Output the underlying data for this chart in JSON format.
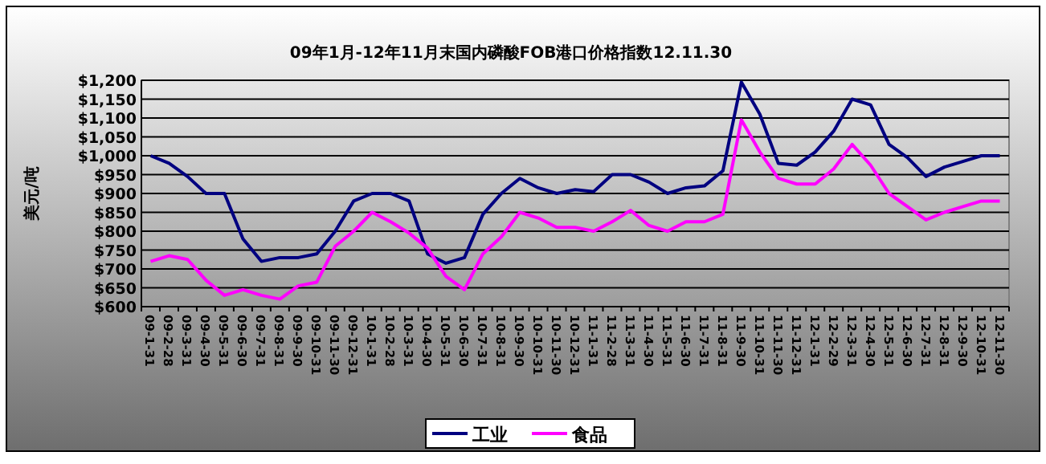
{
  "chart_data": {
    "type": "line",
    "title": "09年1月-12年11月末国内磷酸FOB港口价格指数12.11.30",
    "ylabel": "美元/吨",
    "categories": [
      "09-1-31",
      "09-2-28",
      "09-3-31",
      "09-4-30",
      "09-5-31",
      "09-6-30",
      "09-7-31",
      "09-8-31",
      "09-9-30",
      "09-10-31",
      "09-11-30",
      "09-12-31",
      "10-1-31",
      "10-2-28",
      "10-3-31",
      "10-4-30",
      "10-5-31",
      "10-6-30",
      "10-7-31",
      "10-8-31",
      "10-9-30",
      "10-10-31",
      "10-11-30",
      "10-12-31",
      "11-1-31",
      "11-2-28",
      "11-3-31",
      "11-4-30",
      "11-5-31",
      "11-6-30",
      "11-7-31",
      "11-8-31",
      "11-9-30",
      "11-10-31",
      "11-11-30",
      "11-12-31",
      "12-1-31",
      "12-2-29",
      "12-3-31",
      "12-4-30",
      "12-5-31",
      "12-6-30",
      "12-7-31",
      "12-8-31",
      "12-9-30",
      "12-10-31",
      "12-11-30"
    ],
    "series": [
      {
        "name": "工业",
        "color": "#000080",
        "values": [
          1000,
          980,
          945,
          900,
          900,
          780,
          720,
          730,
          730,
          740,
          800,
          880,
          900,
          900,
          880,
          740,
          715,
          730,
          845,
          900,
          940,
          915,
          900,
          910,
          905,
          950,
          950,
          930,
          900,
          915,
          920,
          960,
          1195,
          1110,
          980,
          975,
          1010,
          1065,
          1150,
          1135,
          1030,
          995,
          945,
          970,
          985,
          1000,
          1000
        ]
      },
      {
        "name": "食品",
        "color": "#ff00ff",
        "values": [
          720,
          735,
          725,
          670,
          630,
          645,
          630,
          620,
          655,
          665,
          760,
          800,
          850,
          825,
          795,
          755,
          680,
          645,
          740,
          785,
          850,
          835,
          810,
          810,
          800,
          825,
          855,
          815,
          800,
          825,
          825,
          845,
          1095,
          1010,
          940,
          925,
          925,
          965,
          1030,
          975,
          900,
          865,
          830,
          850,
          865,
          880,
          880
        ]
      }
    ],
    "ylim": [
      600,
      1200
    ],
    "yticks": [
      {
        "value": 600,
        "label": "$600"
      },
      {
        "value": 650,
        "label": "$650"
      },
      {
        "value": 700,
        "label": "$700"
      },
      {
        "value": 750,
        "label": "$750"
      },
      {
        "value": 800,
        "label": "$800"
      },
      {
        "value": 850,
        "label": "$850"
      },
      {
        "value": 900,
        "label": "$900"
      },
      {
        "value": 950,
        "label": "$950"
      },
      {
        "value": 1000,
        "label": "$1,000"
      },
      {
        "value": 1050,
        "label": "$1,050"
      },
      {
        "value": 1100,
        "label": "$1,100"
      },
      {
        "value": 1150,
        "label": "$1,150"
      },
      {
        "value": 1200,
        "label": "$1,200"
      }
    ],
    "grid": "y",
    "legend": "bottom"
  }
}
